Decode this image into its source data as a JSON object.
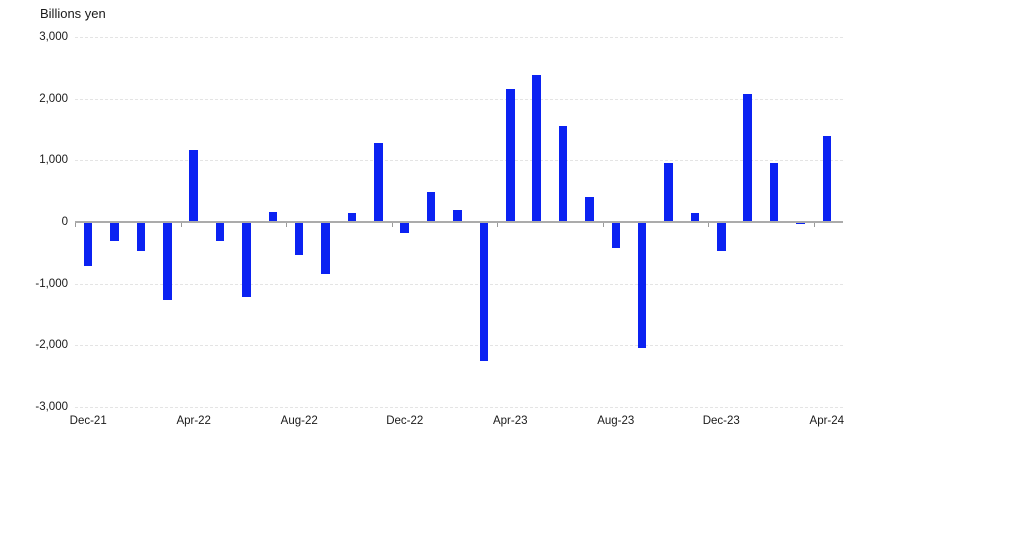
{
  "chart_data": {
    "type": "bar",
    "title": "Billions yen",
    "xlabel": "",
    "ylabel": "Billions yen",
    "legend": "none",
    "grid": "horizontal-dashed",
    "bar_color": "#0b22f2",
    "axis_color": "#ababab",
    "ylim": [
      -3000,
      3000
    ],
    "y_ticks": [
      3000,
      2000,
      1000,
      0,
      -1000,
      -2000,
      -3000
    ],
    "y_tick_labels": [
      "3,000",
      "2,000",
      "1,000",
      "0",
      "-1,000",
      "-2,000",
      "-3,000"
    ],
    "x": [
      "Dec-21",
      "Jan-22",
      "Feb-22",
      "Mar-22",
      "Apr-22",
      "May-22",
      "Jun-22",
      "Jul-22",
      "Aug-22",
      "Sep-22",
      "Oct-22",
      "Nov-22",
      "Dec-22",
      "Jan-23",
      "Feb-23",
      "Mar-23",
      "Apr-23",
      "May-23",
      "Jun-23",
      "Jul-23",
      "Aug-23",
      "Sep-23",
      "Oct-23",
      "Nov-23",
      "Dec-23",
      "Jan-24",
      "Feb-24",
      "Mar-24",
      "Apr-24"
    ],
    "values": [
      -710,
      -300,
      -470,
      -1270,
      1160,
      -310,
      -1210,
      170,
      -540,
      -850,
      140,
      1280,
      -180,
      490,
      190,
      -2260,
      2150,
      2390,
      1560,
      410,
      -420,
      -2050,
      950,
      140,
      -470,
      2080,
      960,
      -40,
      1390
    ],
    "x_tick_indices": [
      0,
      4,
      8,
      12,
      16,
      20,
      24,
      28
    ],
    "x_tick_labels": [
      "Dec-21",
      "Apr-22",
      "Aug-22",
      "Dec-22",
      "Apr-23",
      "Aug-23",
      "Dec-23",
      "Apr-24"
    ]
  }
}
